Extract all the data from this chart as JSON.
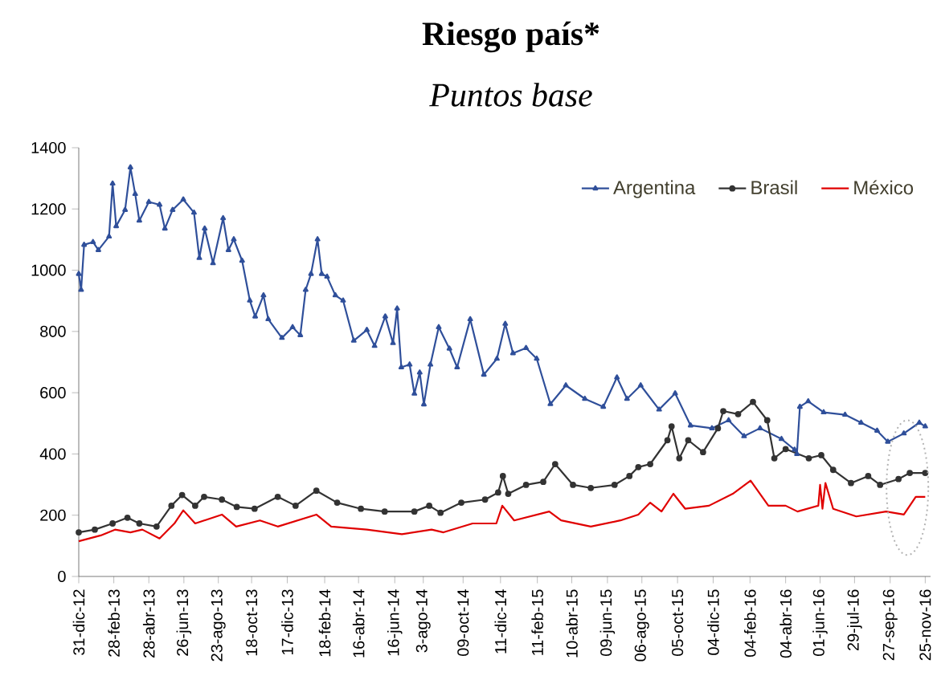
{
  "chart_data": {
    "type": "line",
    "title": "Riesgo país*",
    "subtitle": "Puntos base",
    "xlim": [
      "2012-12-31",
      "2016-12-04"
    ],
    "ylim": [
      0,
      1400
    ],
    "yticks": [
      0,
      200,
      400,
      600,
      800,
      1000,
      1200,
      1400
    ],
    "xticks": [
      {
        "value": "2012-12-31",
        "label": "31-dic-12"
      },
      {
        "value": "2013-02-28",
        "label": "28-feb-13"
      },
      {
        "value": "2013-04-28",
        "label": "28-abr-13"
      },
      {
        "value": "2013-06-26",
        "label": "26-jun-13"
      },
      {
        "value": "2013-08-23",
        "label": "23-ago-13"
      },
      {
        "value": "2013-10-18",
        "label": "18-oct-13"
      },
      {
        "value": "2013-12-17",
        "label": "17-dic-13"
      },
      {
        "value": "2014-02-18",
        "label": "18-feb-14"
      },
      {
        "value": "2014-04-16",
        "label": "16-abr-14"
      },
      {
        "value": "2014-06-16",
        "label": "16-jun-14"
      },
      {
        "value": "2014-08-03",
        "label": "3-ago-14"
      },
      {
        "value": "2014-10-09",
        "label": "09-oct-14"
      },
      {
        "value": "2014-12-11",
        "label": "11-dic-14"
      },
      {
        "value": "2015-02-11",
        "label": "11-feb-15"
      },
      {
        "value": "2015-04-10",
        "label": "10-abr-15"
      },
      {
        "value": "2015-06-09",
        "label": "09-jun-15"
      },
      {
        "value": "2015-08-06",
        "label": "06-ago-15"
      },
      {
        "value": "2015-10-05",
        "label": "05-oct-15"
      },
      {
        "value": "2015-12-04",
        "label": "04-dic-15"
      },
      {
        "value": "2016-02-04",
        "label": "04-feb-16"
      },
      {
        "value": "2016-04-04",
        "label": "04-abr-16"
      },
      {
        "value": "2016-06-01",
        "label": "01-jun-16"
      },
      {
        "value": "2016-07-29",
        "label": "29-jul-16"
      },
      {
        "value": "2016-09-27",
        "label": "27-sep-16"
      },
      {
        "value": "2016-11-25",
        "label": "25-nov-16"
      }
    ],
    "legend": "top right",
    "grid": false,
    "line_style": "solid",
    "series": [
      {
        "name": "Argentina",
        "color": "#2f4f9a",
        "marker": "triangle",
        "x": [
          "2012-12-31",
          "2013-01-04",
          "2013-01-09",
          "2013-01-24",
          "2013-02-02",
          "2013-02-20",
          "2013-02-26",
          "2013-03-04",
          "2013-03-19",
          "2013-03-28",
          "2013-04-05",
          "2013-04-12",
          "2013-04-28",
          "2013-05-16",
          "2013-05-25",
          "2013-06-07",
          "2013-06-25",
          "2013-07-13",
          "2013-07-22",
          "2013-07-31",
          "2013-08-14",
          "2013-08-31",
          "2013-09-09",
          "2013-09-18",
          "2013-10-02",
          "2013-10-15",
          "2013-10-24",
          "2013-11-07",
          "2013-11-15",
          "2013-12-08",
          "2013-12-26",
          "2014-01-08",
          "2014-01-17",
          "2014-01-26",
          "2014-02-06",
          "2014-02-13",
          "2014-02-22",
          "2014-03-08",
          "2014-03-21",
          "2014-04-08",
          "2014-04-30",
          "2014-05-13",
          "2014-05-31",
          "2014-06-13",
          "2014-06-20",
          "2014-06-27",
          "2014-07-11",
          "2014-07-19",
          "2014-07-28",
          "2014-08-04",
          "2014-08-15",
          "2014-08-29",
          "2014-09-16",
          "2014-09-29",
          "2014-10-21",
          "2014-11-13",
          "2014-12-05",
          "2014-12-19",
          "2015-01-01",
          "2015-01-23",
          "2015-02-10",
          "2015-03-05",
          "2015-03-31",
          "2015-05-02",
          "2015-06-02",
          "2015-06-25",
          "2015-07-12",
          "2015-08-04",
          "2015-09-04",
          "2015-10-01",
          "2015-10-27",
          "2015-12-02",
          "2015-12-30",
          "2016-01-25",
          "2016-02-21",
          "2016-03-28",
          "2016-04-19",
          "2016-04-23",
          "2016-04-28",
          "2016-05-12",
          "2016-06-07",
          "2016-07-13",
          "2016-08-09",
          "2016-09-05",
          "2016-09-23",
          "2016-10-20",
          "2016-11-15",
          "2016-11-25"
        ],
        "values": [
          988,
          936,
          1083,
          1092,
          1066,
          1110,
          1283,
          1144,
          1197,
          1336,
          1249,
          1162,
          1223,
          1214,
          1136,
          1197,
          1231,
          1188,
          1040,
          1136,
          1023,
          1170,
          1066,
          1101,
          1031,
          901,
          849,
          918,
          840,
          779,
          814,
          788,
          936,
          988,
          1101,
          988,
          979,
          918,
          901,
          770,
          805,
          753,
          849,
          762,
          875,
          683,
          692,
          597,
          666,
          562,
          692,
          814,
          744,
          683,
          840,
          659,
          711,
          825,
          729,
          746,
          711,
          563,
          624,
          580,
          554,
          650,
          580,
          624,
          545,
          598,
          493,
          484,
          510,
          458,
          484,
          449,
          414,
          400,
          554,
          572,
          536,
          528,
          502,
          476,
          440,
          467,
          502,
          490
        ]
      },
      {
        "name": "Brasil",
        "color": "#333333",
        "marker": "circle",
        "x": [
          "2012-12-31",
          "2013-01-27",
          "2013-02-26",
          "2013-03-23",
          "2013-04-12",
          "2013-05-11",
          "2013-06-05",
          "2013-06-23",
          "2013-07-15",
          "2013-07-30",
          "2013-08-29",
          "2013-09-23",
          "2013-10-23",
          "2013-12-01",
          "2013-12-31",
          "2014-02-04",
          "2014-03-11",
          "2014-04-20",
          "2014-05-30",
          "2014-07-19",
          "2014-08-13",
          "2014-09-01",
          "2014-10-06",
          "2014-11-15",
          "2014-12-07",
          "2014-12-15",
          "2014-12-24",
          "2015-01-23",
          "2015-02-21",
          "2015-03-13",
          "2015-04-12",
          "2015-05-12",
          "2015-06-21",
          "2015-07-16",
          "2015-07-31",
          "2015-08-20",
          "2015-09-18",
          "2015-09-25",
          "2015-10-08",
          "2015-10-23",
          "2015-11-17",
          "2015-12-12",
          "2015-12-21",
          "2016-01-15",
          "2016-02-09",
          "2016-03-04",
          "2016-03-16",
          "2016-04-04",
          "2016-05-13",
          "2016-06-03",
          "2016-06-23",
          "2016-07-23",
          "2016-08-21",
          "2016-09-10",
          "2016-10-11",
          "2016-10-30",
          "2016-11-25"
        ],
        "values": [
          144,
          153,
          173,
          192,
          173,
          163,
          231,
          266,
          231,
          260,
          251,
          227,
          221,
          260,
          231,
          280,
          241,
          221,
          212,
          212,
          231,
          208,
          241,
          251,
          274,
          328,
          270,
          299,
          309,
          367,
          299,
          289,
          299,
          328,
          357,
          367,
          445,
          490,
          386,
          445,
          406,
          484,
          540,
          530,
          570,
          510,
          386,
          416,
          386,
          396,
          348,
          305,
          328,
          299,
          318,
          338,
          338
        ]
      },
      {
        "name": "México",
        "color": "#e00000",
        "marker": "none",
        "x": [
          "2012-12-31",
          "2013-02-06",
          "2013-03-02",
          "2013-03-28",
          "2013-04-17",
          "2013-05-16",
          "2013-06-10",
          "2013-06-25",
          "2013-07-15",
          "2013-08-29",
          "2013-09-22",
          "2013-11-01",
          "2013-12-01",
          "2014-02-04",
          "2014-03-01",
          "2014-04-30",
          "2014-06-28",
          "2014-08-17",
          "2014-09-06",
          "2014-10-25",
          "2014-12-04",
          "2014-12-14",
          "2015-01-03",
          "2015-03-03",
          "2015-03-23",
          "2015-05-12",
          "2015-07-01",
          "2015-07-31",
          "2015-08-20",
          "2015-09-08",
          "2015-09-28",
          "2015-10-18",
          "2015-11-27",
          "2016-01-06",
          "2016-02-05",
          "2016-03-06",
          "2016-04-04",
          "2016-04-24",
          "2016-05-29",
          "2016-06-01",
          "2016-06-05",
          "2016-06-10",
          "2016-06-23",
          "2016-08-01",
          "2016-09-20",
          "2016-10-20",
          "2016-11-09",
          "2016-11-25"
        ],
        "values": [
          115,
          134,
          153,
          144,
          153,
          124,
          173,
          216,
          173,
          202,
          163,
          183,
          163,
          202,
          163,
          153,
          138,
          153,
          144,
          173,
          173,
          231,
          183,
          212,
          183,
          163,
          183,
          202,
          241,
          212,
          270,
          221,
          231,
          270,
          313,
          231,
          231,
          212,
          231,
          299,
          221,
          305,
          221,
          196,
          212,
          202,
          260,
          260
        ]
      }
    ]
  }
}
